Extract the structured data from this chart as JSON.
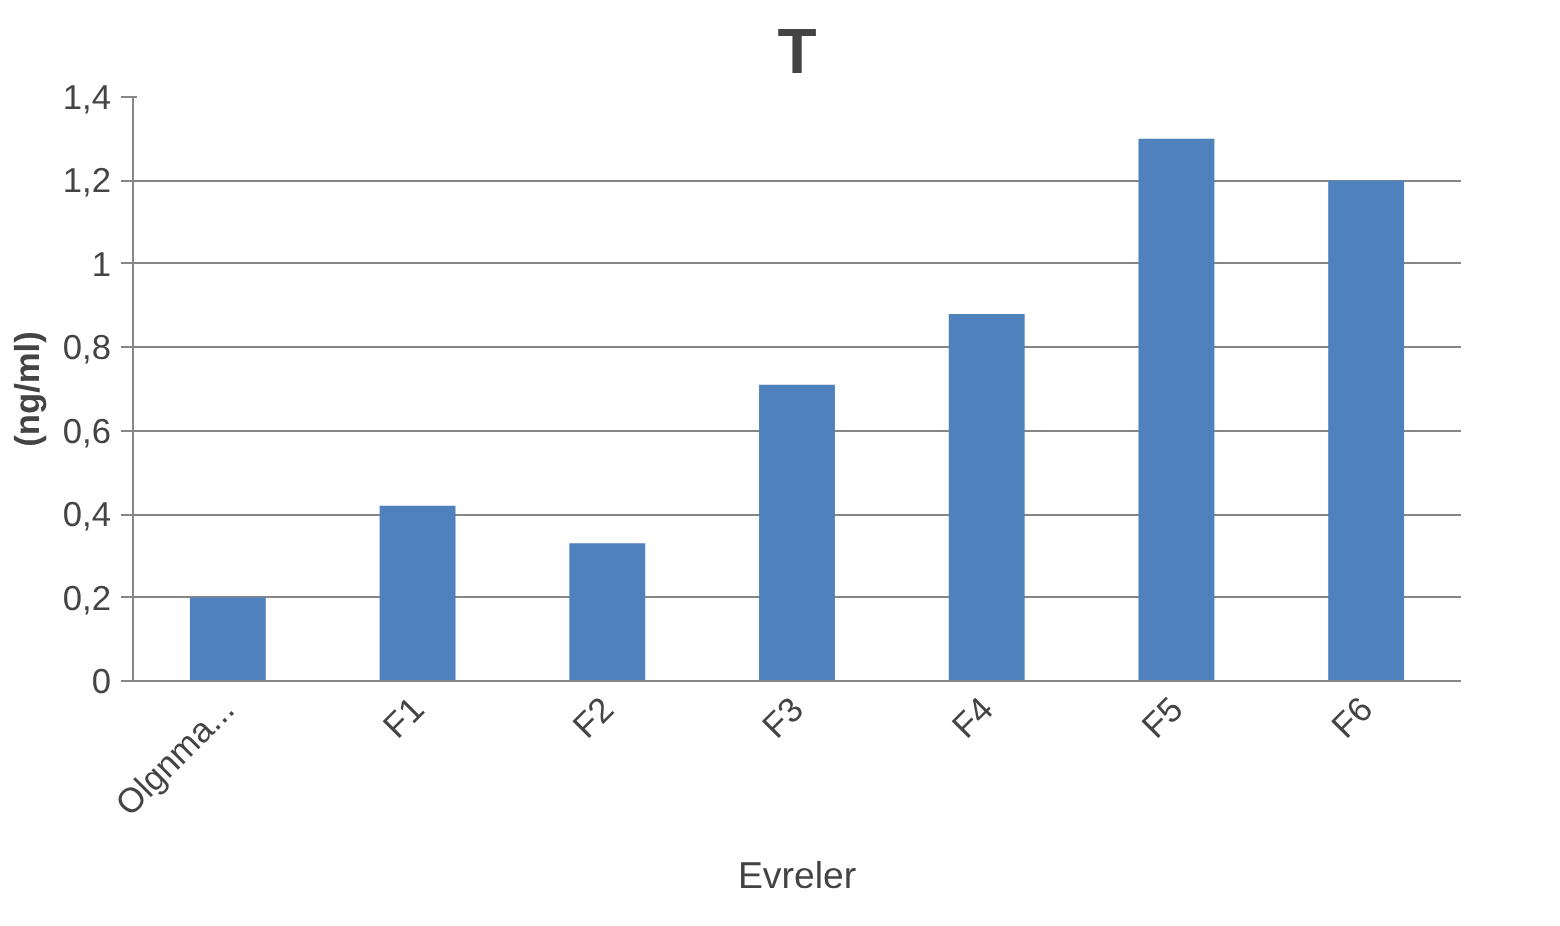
{
  "chart_data": {
    "type": "bar",
    "title": "T",
    "xlabel": "Evreler",
    "ylabel": "(ng/ml)",
    "categories": [
      "Olgnma...",
      "F1",
      "F2",
      "F3",
      "F4",
      "F5",
      "F6"
    ],
    "values": [
      0.2,
      0.42,
      0.33,
      0.71,
      0.88,
      1.3,
      1.2
    ],
    "color": "#4f81bd",
    "ylim": [
      0,
      1.4
    ],
    "yticks": [
      {
        "value": 0,
        "label": "0"
      },
      {
        "value": 0.2,
        "label": "0,2"
      },
      {
        "value": 0.4,
        "label": "0,4"
      },
      {
        "value": 0.6,
        "label": "0,6"
      },
      {
        "value": 0.8,
        "label": "0,8"
      },
      {
        "value": 1,
        "label": "1"
      },
      {
        "value": 1.2,
        "label": "1,2"
      },
      {
        "value": 1.4,
        "label": "1,4"
      }
    ],
    "grid": "y"
  }
}
